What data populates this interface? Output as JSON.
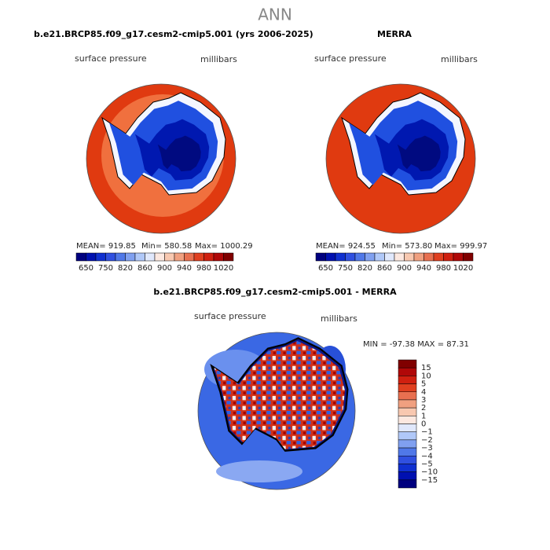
{
  "title": "ANN",
  "panels": [
    {
      "title": "b.e21.BRCP85.f09_g17.cesm2-cmip5.001 (yrs 2006-2025)",
      "variable": "surface pressure",
      "units": "millibars",
      "stats": [
        "MEAN= 919.85",
        "Min= 580.58",
        "Max= 1000.29"
      ],
      "colorbar_labels": [
        "650",
        "750",
        "820",
        "860",
        "900",
        "940",
        "980",
        "1020"
      ]
    },
    {
      "title": "MERRA",
      "variable": "surface pressure",
      "units": "millibars",
      "stats": [
        "MEAN= 924.55",
        "Min= 573.80",
        "Max= 999.97"
      ],
      "colorbar_labels": [
        "650",
        "750",
        "820",
        "860",
        "900",
        "940",
        "980",
        "1020"
      ]
    }
  ],
  "difference": {
    "title": "b.e21.BRCP85.f09_g17.cesm2-cmip5.001 - MERRA",
    "variable": "surface pressure",
    "units": "millibars",
    "stats": "MIN = -97.38 MAX =  87.31",
    "colorbar_labels": [
      "15",
      "10",
      "5",
      "4",
      "3",
      "2",
      "1",
      "0",
      "−1",
      "−2",
      "−3",
      "−4",
      "−5",
      "−10",
      "−15"
    ]
  }
}
